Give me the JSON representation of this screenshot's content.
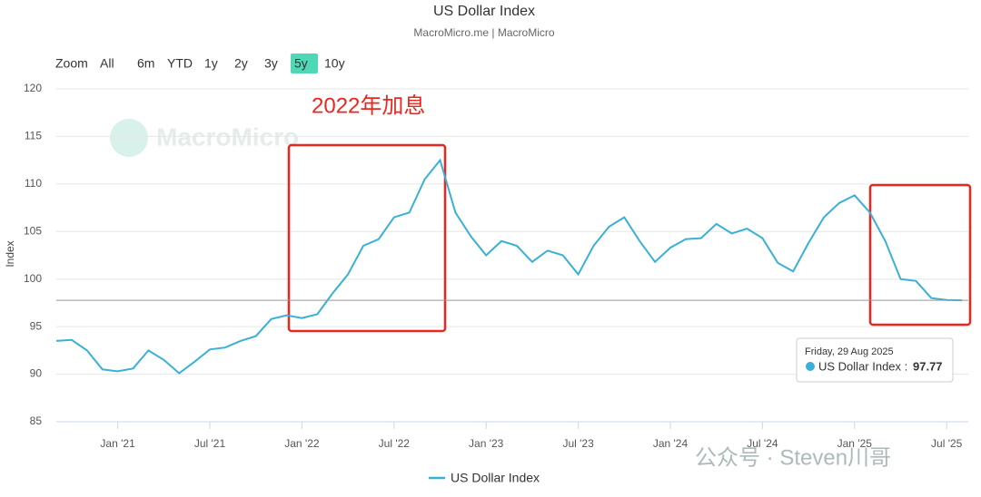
{
  "chart_data": {
    "type": "line",
    "title": "US Dollar Index",
    "subtitle": "MacroMicro.me | MacroMicro",
    "range_buttons": [
      "Zoom",
      "All",
      "6m",
      "YTD",
      "1y",
      "2y",
      "3y",
      "5y",
      "10y"
    ],
    "active_range": "5y",
    "watermark": "MacroMicro",
    "annotation": "2022年加息",
    "y_label": "Index",
    "categories": [
      null,
      null,
      null,
      null,
      "Jan '21",
      null,
      null,
      null,
      null,
      null,
      "Jul '21",
      null,
      null,
      null,
      null,
      null,
      "Jan '22",
      null,
      null,
      null,
      null,
      null,
      "Jul '22",
      null,
      null,
      null,
      null,
      null,
      "Jan '23",
      null,
      null,
      null,
      null,
      null,
      "Jul '23",
      null,
      null,
      null,
      null,
      null,
      "Jan '24",
      null,
      null,
      null,
      null,
      null,
      "Jul '24",
      null,
      null,
      null,
      null,
      null,
      "Jan '25",
      null,
      null,
      null,
      null,
      null,
      "Jul '25",
      null
    ],
    "series": [
      {
        "name": "US Dollar Index",
        "color": "#3ab0d6",
        "values": [
          93.5,
          93.6,
          92.5,
          90.5,
          90.3,
          90.6,
          92.5,
          91.5,
          90.1,
          91.3,
          92.6,
          92.8,
          93.5,
          94.0,
          95.8,
          96.2,
          95.9,
          96.3,
          98.5,
          100.5,
          103.5,
          104.2,
          106.5,
          107.0,
          110.5,
          112.5,
          107.0,
          104.5,
          102.5,
          104.0,
          103.5,
          101.8,
          103.0,
          102.5,
          100.5,
          103.5,
          105.5,
          106.5,
          104.0,
          101.8,
          103.3,
          104.2,
          104.3,
          105.8,
          104.8,
          105.3,
          104.3,
          101.7,
          100.8,
          103.8,
          106.5,
          108.0,
          108.8,
          107.0,
          104.0,
          100.0,
          99.8,
          98.0,
          97.8,
          97.77
        ]
      }
    ],
    "ylim": [
      85,
      120
    ],
    "yticks": [
      85,
      90,
      95,
      100,
      105,
      110,
      115,
      120
    ],
    "grid": true,
    "tooltip": {
      "date": "Friday, 29 Aug 2025",
      "label": "US Dollar Index :"
    },
    "footer_watermark": "公众号 · Steven川哥"
  }
}
